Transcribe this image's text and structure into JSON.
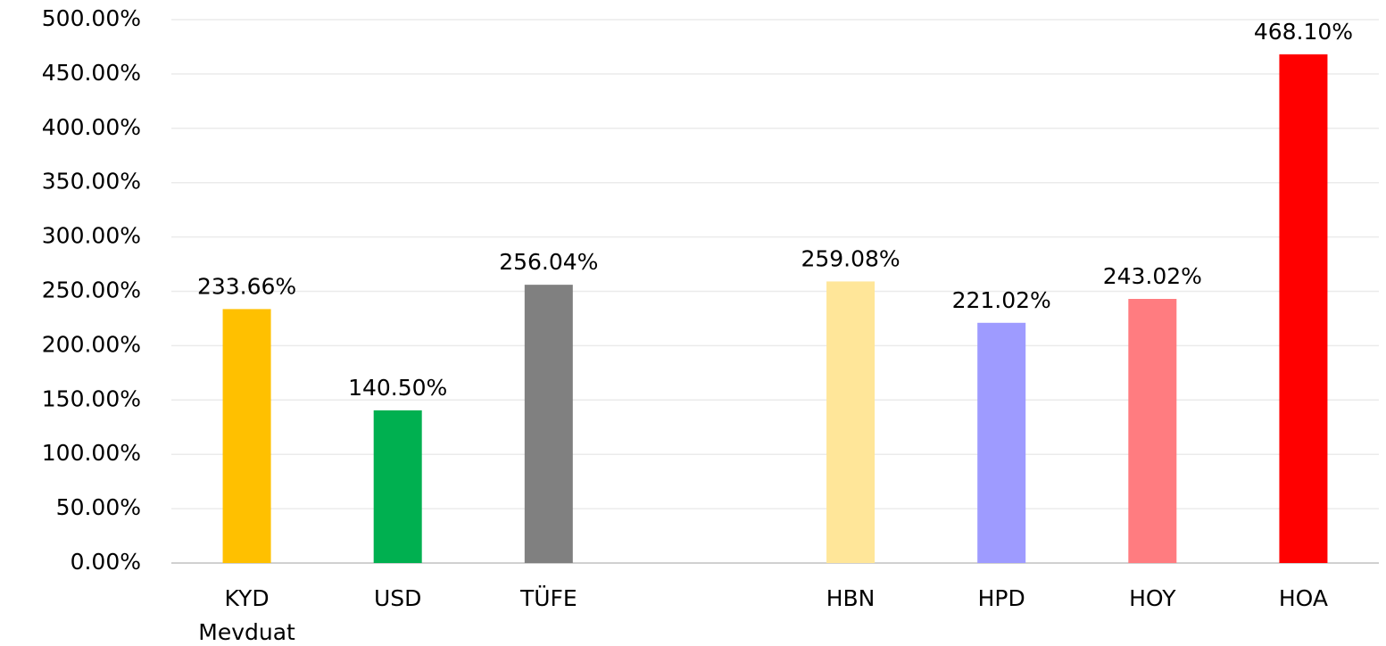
{
  "chart_data": {
    "type": "bar",
    "categories": [
      "KYD Mevduat",
      "USD",
      "TÜFE",
      null,
      "HBN",
      "HPD",
      "HOY",
      "HOA"
    ],
    "values": [
      233.66,
      140.5,
      256.04,
      null,
      259.08,
      221.02,
      243.02,
      468.1
    ],
    "value_labels": [
      "233.66%",
      "140.50%",
      "256.04%",
      null,
      "259.08%",
      "221.02%",
      "243.02%",
      "468.10%"
    ],
    "colors": [
      "#ffc000",
      "#00b050",
      "#808080",
      null,
      "#ffe699",
      "#9e9bff",
      "#ff7c80",
      "#ff0000"
    ],
    "ylim": [
      0,
      500
    ],
    "yticks": [
      {
        "value": 0,
        "label": "0.00%"
      },
      {
        "value": 50,
        "label": "50.00%"
      },
      {
        "value": 100,
        "label": "100.00%"
      },
      {
        "value": 150,
        "label": "150.00%"
      },
      {
        "value": 200,
        "label": "200.00%"
      },
      {
        "value": 250,
        "label": "250.00%"
      },
      {
        "value": 300,
        "label": "300.00%"
      },
      {
        "value": 350,
        "label": "350.00%"
      },
      {
        "value": 400,
        "label": "400.00%"
      },
      {
        "value": 450,
        "label": "450.00%"
      },
      {
        "value": 500,
        "label": "500.00%"
      }
    ],
    "grid": true
  }
}
